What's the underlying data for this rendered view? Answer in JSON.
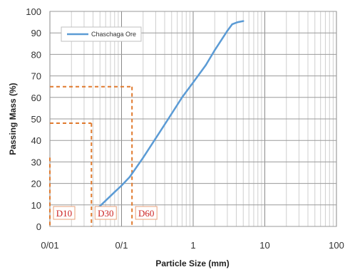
{
  "chart_data": {
    "type": "line",
    "xlabel": "Particle Size (mm)",
    "ylabel": "Passing Mass (%)",
    "xscale": "log",
    "xlim": [
      0.01,
      100
    ],
    "ylim": [
      0,
      100
    ],
    "grid": true,
    "legend_position": "top-left",
    "x_tick_labels": [
      "0/01",
      "0/1",
      "1",
      "10",
      "100"
    ],
    "y_tick_labels": [
      "0",
      "10",
      "20",
      "30",
      "40",
      "50",
      "60",
      "70",
      "80",
      "90",
      "100"
    ],
    "series": [
      {
        "name": "Chaschaga Ore",
        "color": "#5b9bd5",
        "x": [
          0.045,
          0.06,
          0.08,
          0.1,
          0.13,
          0.2,
          0.3,
          0.45,
          0.7,
          1.0,
          1.5,
          2.0,
          3.0,
          3.5,
          4.2,
          5.0
        ],
        "y": [
          8,
          12,
          16,
          19,
          23,
          32,
          41,
          50,
          60,
          67,
          75,
          82,
          91,
          94,
          95,
          95.5
        ]
      }
    ],
    "annotations": [
      {
        "label": "D10",
        "x": 0.01,
        "y": 32,
        "color": "#e07a2e"
      },
      {
        "label": "D30",
        "x": 0.038,
        "y": 48,
        "color": "#e07a2e"
      },
      {
        "label": "D60",
        "x": 0.14,
        "y": 65,
        "color": "#e07a2e"
      }
    ]
  }
}
